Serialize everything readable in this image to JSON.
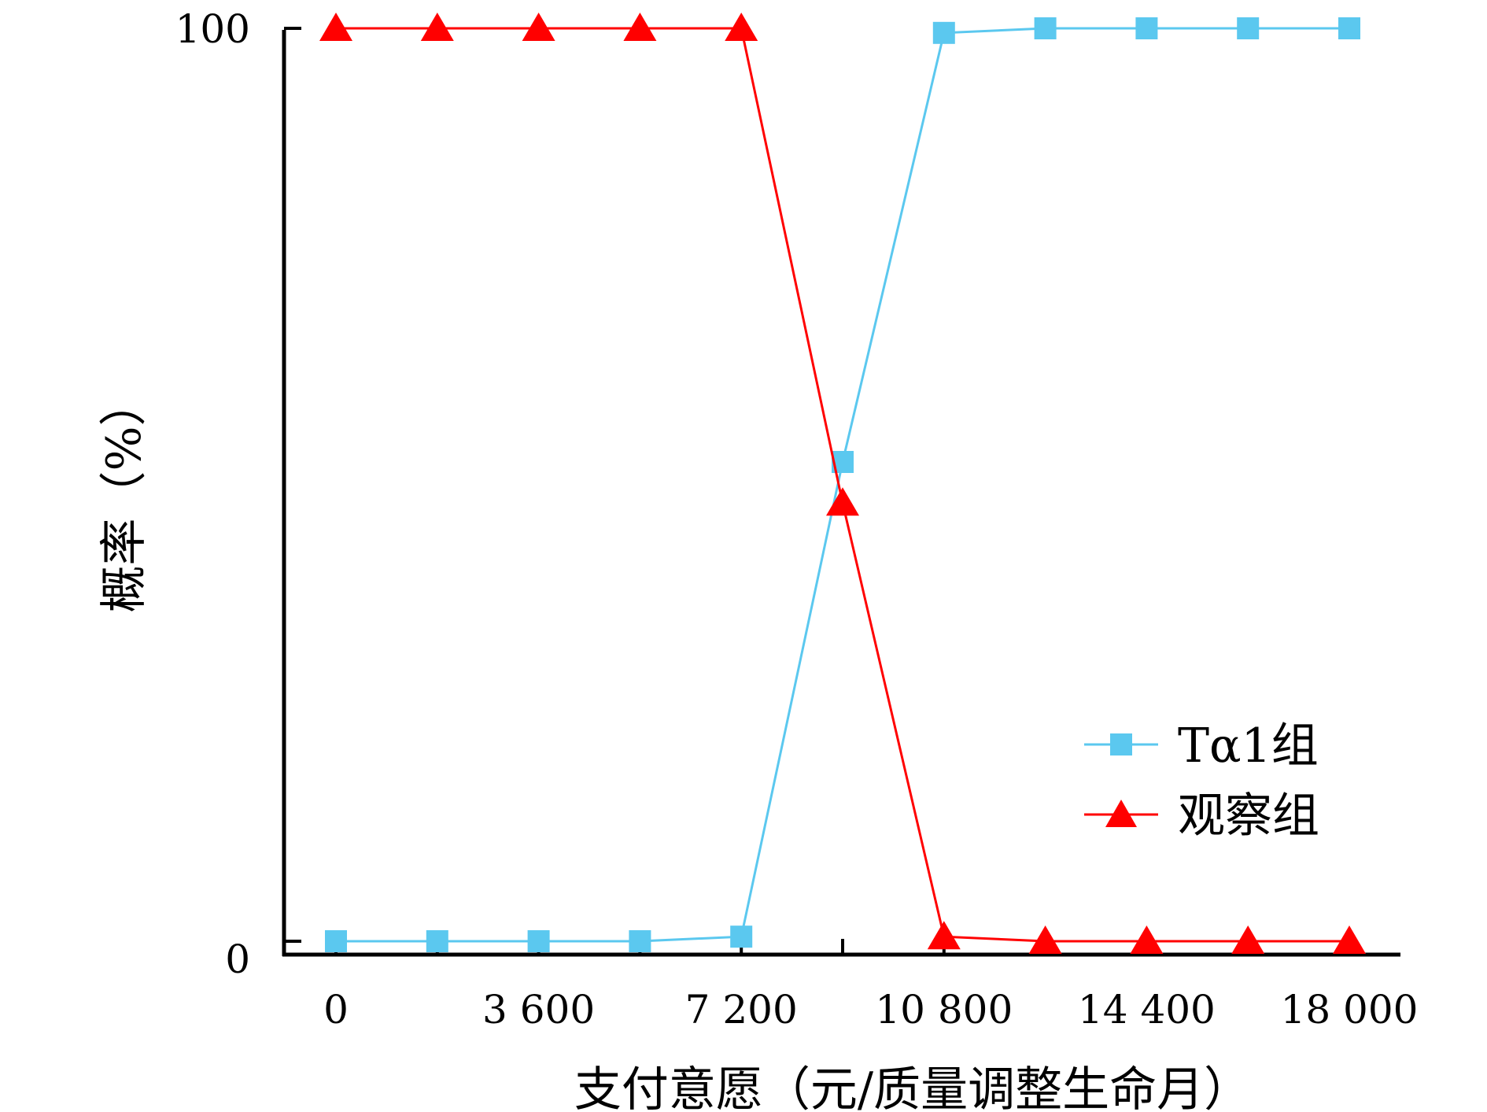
{
  "chart_data": {
    "type": "line",
    "title": "",
    "xlabel": "支付意愿（元/质量调整生命月）",
    "ylabel": "概率（%）",
    "x": [
      0,
      1800,
      3600,
      5400,
      7200,
      9000,
      10800,
      12600,
      14400,
      16200,
      18000
    ],
    "x_ticks": [
      0,
      3600,
      7200,
      10800,
      14400,
      18000
    ],
    "x_tick_labels": [
      "0",
      "3 600",
      "7 200",
      "10 800",
      "14 400",
      "18 000"
    ],
    "y_ticks": [
      0,
      100
    ],
    "y_tick_labels": [
      "0",
      "100"
    ],
    "xlim": [
      -900,
      19000
    ],
    "ylim": [
      -2,
      100
    ],
    "grid": false,
    "legend_position": "right",
    "series": [
      {
        "name": "Tα1组",
        "color": "#5BC8EF",
        "marker": "square",
        "values": [
          0,
          0,
          0,
          0,
          0.5,
          52.5,
          99.5,
          100,
          100,
          100,
          100
        ]
      },
      {
        "name": "观察组",
        "color": "#FF0000",
        "marker": "triangle",
        "values": [
          100,
          100,
          100,
          100,
          100,
          48,
          0.5,
          0,
          0,
          0,
          0
        ]
      }
    ]
  }
}
